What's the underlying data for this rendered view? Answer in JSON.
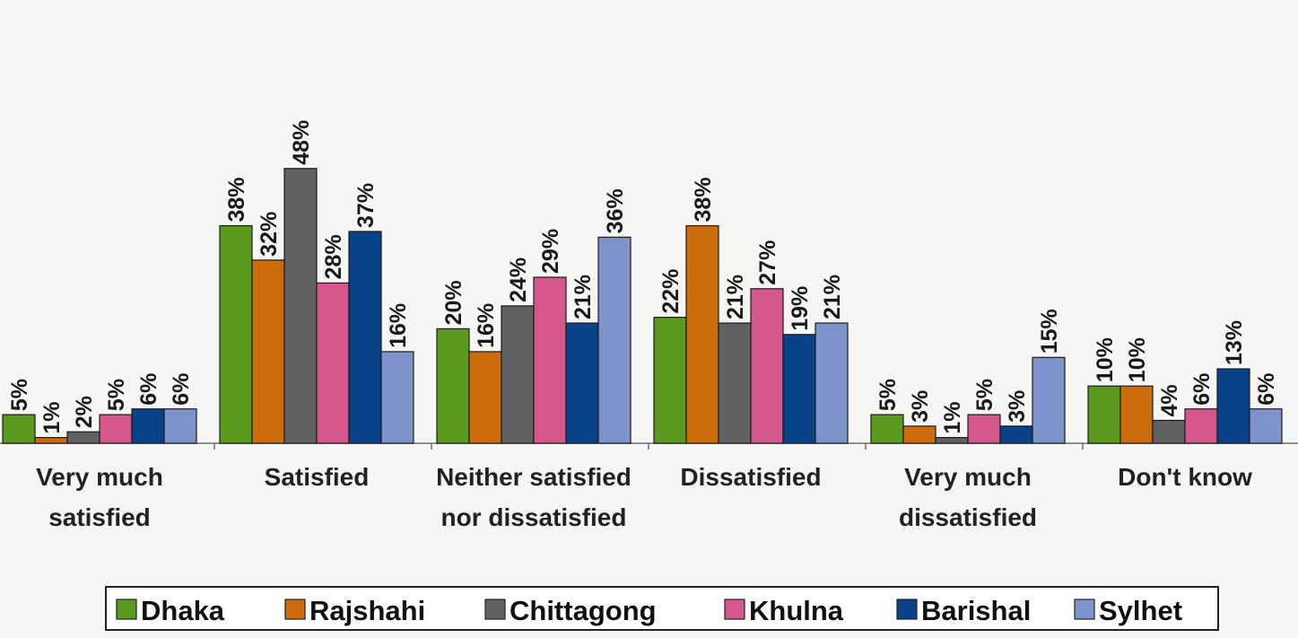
{
  "chart_data": {
    "type": "bar",
    "categories": [
      [
        "Very much",
        "satisfied"
      ],
      [
        "Satisfied"
      ],
      [
        "Neither satisfied",
        "nor dissatisfied"
      ],
      [
        "Dissatisfied"
      ],
      [
        "Very much",
        "dissatisfied"
      ],
      [
        "Don't know"
      ]
    ],
    "series": [
      {
        "name": "Dhaka",
        "color": "#5a9a1e",
        "values": [
          5,
          38,
          20,
          22,
          5,
          10
        ]
      },
      {
        "name": "Rajshahi",
        "color": "#cc6c0c",
        "values": [
          1,
          32,
          16,
          38,
          3,
          10
        ]
      },
      {
        "name": "Chittagong",
        "color": "#5f6163",
        "values": [
          2,
          48,
          24,
          21,
          1,
          4
        ]
      },
      {
        "name": "Khulna",
        "color": "#d4588c",
        "values": [
          5,
          28,
          29,
          27,
          5,
          6
        ]
      },
      {
        "name": "Barishal",
        "color": "#08438a",
        "values": [
          6,
          37,
          21,
          19,
          3,
          13
        ]
      },
      {
        "name": "Sylhet",
        "color": "#7f93cb",
        "values": [
          6,
          16,
          36,
          21,
          15,
          6
        ]
      }
    ],
    "value_suffix": "%",
    "ylim": [
      0,
      50
    ],
    "grid": false,
    "legend_position": "bottom"
  }
}
